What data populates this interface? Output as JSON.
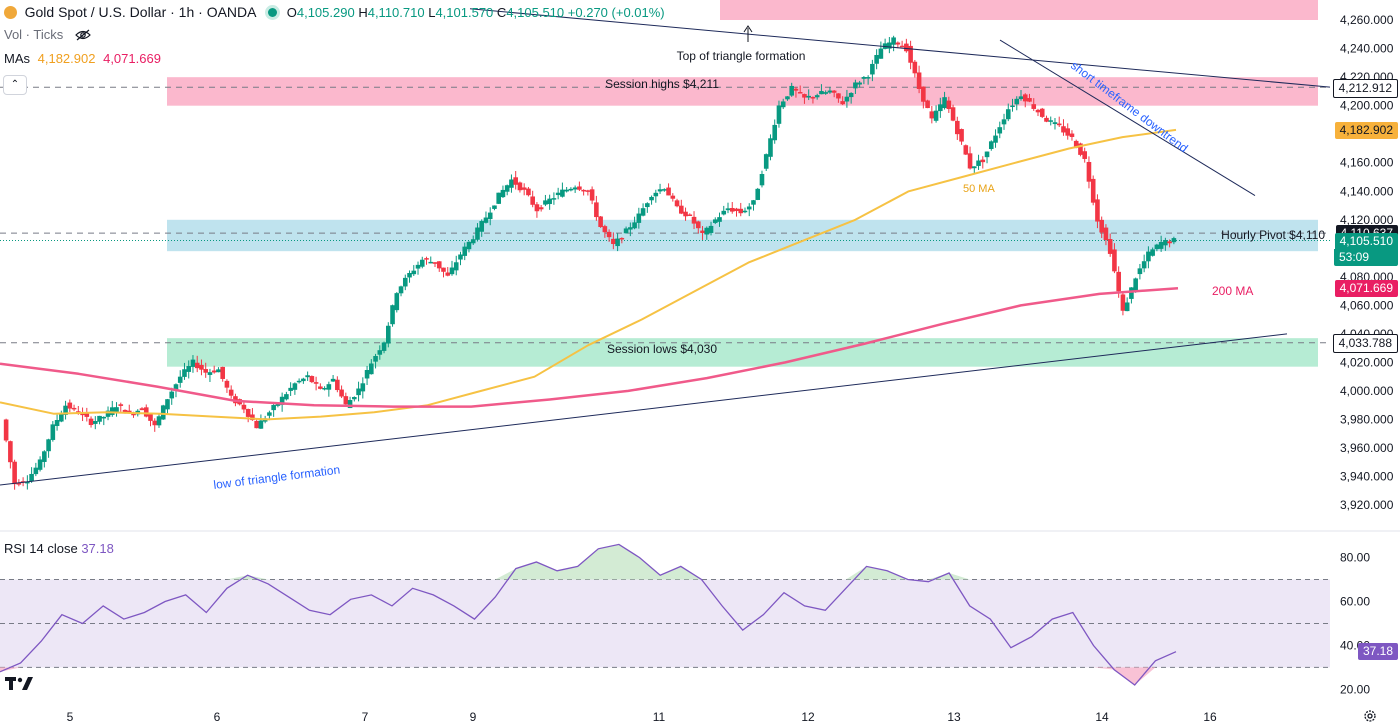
{
  "header": {
    "symbol_title": "Gold Spot / U.S. Dollar · 1h · OANDA",
    "ohlc": {
      "o_label": "O",
      "o": "4,105.290",
      "h_label": "H",
      "h": "4,110.710",
      "l_label": "L",
      "l": "4,101.570",
      "c_label": "C",
      "c": "4,105.510",
      "change": "+0.270 (+0.01%)"
    },
    "vol_label": "Vol · Ticks",
    "mas_label": "MAs",
    "ma_values": [
      "4,182.902",
      "4,071.669"
    ]
  },
  "colors": {
    "up": "#089981",
    "down": "#f23645",
    "ma50": "#f6c244",
    "ma200": "#f05a8a",
    "session_high_zone": "#fbb8cd",
    "pivot_zone": "#bfe3ee",
    "session_low_zone": "#b6ecd4",
    "rsi_line": "#7e57c2",
    "rsi_band": "#ede7f6",
    "trendline": "#1e2a5a"
  },
  "icons": [
    "eye-slash-icon",
    "chevron-up-icon",
    "tradingview-logo-icon",
    "settings-icon"
  ],
  "chart_data": {
    "type": "candlestick",
    "title": "Gold Spot / U.S. Dollar · 1h · OANDA",
    "x_tick_labels": [
      "5",
      "6",
      "7",
      "9",
      "11",
      "12",
      "13",
      "14",
      "16"
    ],
    "y_ticks": [
      "4,260.000",
      "4,240.000",
      "4,220.000",
      "4,200.000",
      "4,160.000",
      "4,140.000",
      "4,120.000",
      "4,080.000",
      "4,060.000",
      "4,040.000",
      "4,020.000",
      "4,000.000",
      "3,980.000",
      "3,960.000",
      "3,940.000",
      "3,920.000"
    ],
    "ylim": [
      3913,
      4265
    ],
    "y_axis_labels": {
      "session_high": "4,212.912",
      "ma50": "4,182.902",
      "pivot": "4,110.637",
      "last_price": "4,105.510",
      "countdown": "53:09",
      "ma200": "4,071.669",
      "session_low": "4,033.788"
    },
    "levels": {
      "session_high": 4212.912,
      "pivot": 4110.637,
      "last_price": 4105.51,
      "session_low": 4033.788
    },
    "zones": [
      {
        "name": "Session highs $4,211",
        "y_range": [
          4200,
          4220
        ]
      },
      {
        "name": "Hourly Pivot $4,110",
        "y_range": [
          4098,
          4120
        ]
      },
      {
        "name": "Session lows $4,030",
        "y_range": [
          4017,
          4037
        ]
      }
    ],
    "annotations": [
      "Top of triangle formation",
      "Session highs $4,211",
      "Hourly Pivot $4,110",
      "Session lows $4,030",
      "50 MA",
      "200 MA",
      "low of triangle formation",
      "short timeframe downtrend"
    ],
    "price_path": [
      3980,
      3935,
      3938,
      3950,
      3975,
      3990,
      3985,
      3978,
      3982,
      3990,
      3984,
      3988,
      3975,
      3995,
      4010,
      4020,
      4013,
      4015,
      3995,
      3988,
      3975,
      3985,
      3995,
      4005,
      4010,
      4000,
      4008,
      3990,
      4001,
      4020,
      4035,
      4070,
      4082,
      4092,
      4090,
      4080,
      4096,
      4108,
      4122,
      4137,
      4148,
      4140,
      4127,
      4134,
      4140,
      4144,
      4140,
      4115,
      4102,
      4112,
      4123,
      4138,
      4143,
      4128,
      4122,
      4109,
      4120,
      4128,
      4125,
      4132,
      4165,
      4200,
      4212,
      4205,
      4208,
      4210,
      4202,
      4215,
      4222,
      4240,
      4246,
      4240,
      4212,
      4190,
      4205,
      4182,
      4157,
      4162,
      4180,
      4198,
      4208,
      4199,
      4190,
      4185,
      4177,
      4162,
      4120,
      4098,
      4055,
      4080,
      4096,
      4104,
      4105.51
    ],
    "ma50_path": [
      3992,
      3984,
      3985,
      3984,
      3982,
      3980,
      3982,
      3985,
      3990,
      4000,
      4010,
      4032,
      4050,
      4070,
      4090,
      4105,
      4120,
      4140,
      4150,
      4160,
      4170,
      4178,
      4183
    ],
    "ma200_path": [
      4019,
      4012,
      4003,
      3993,
      3990,
      3989,
      3989,
      3994,
      4000,
      4009,
      4020,
      4033,
      4047,
      4060,
      4068,
      4072
    ],
    "rsi": {
      "label": "RSI 14 close",
      "value": "37.18",
      "y_ticks": [
        "80.00",
        "60.00",
        "40.00",
        "20.00"
      ],
      "ylim": [
        17,
        88
      ],
      "band": [
        30,
        70
      ],
      "middle": 50,
      "series": [
        28,
        32,
        42,
        54,
        50,
        58,
        52,
        55,
        60,
        63,
        55,
        66,
        72,
        68,
        62,
        56,
        54,
        61,
        63,
        58,
        66,
        63,
        58,
        52,
        62,
        75,
        78,
        74,
        76,
        84,
        86,
        80,
        72,
        76,
        70,
        58,
        47,
        54,
        64,
        58,
        56,
        66,
        76,
        74,
        70,
        69,
        73,
        58,
        52,
        39,
        44,
        52,
        55,
        40,
        29,
        22,
        33,
        37.18
      ]
    }
  }
}
